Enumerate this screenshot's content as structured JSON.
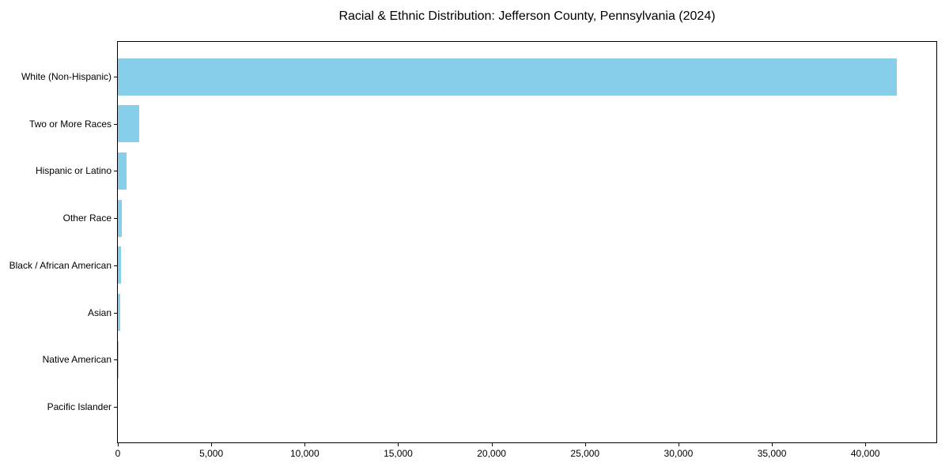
{
  "chart_data": {
    "type": "bar",
    "orientation": "horizontal",
    "title": "Racial & Ethnic Distribution: Jefferson County, Pennsylvania (2024)",
    "categories": [
      "White (Non-Hispanic)",
      "Two or More Races",
      "Hispanic or Latino",
      "Other Race",
      "Black / African American",
      "Asian",
      "Native American",
      "Pacific Islander"
    ],
    "values": [
      41700,
      1150,
      480,
      210,
      180,
      130,
      30,
      10
    ],
    "bar_color": "#87CEEB",
    "xlabel": "",
    "ylabel": "",
    "xlim": [
      0,
      43800
    ],
    "xticks": [
      0,
      5000,
      10000,
      15000,
      20000,
      25000,
      30000,
      35000,
      40000
    ],
    "xtick_labels": [
      "0",
      "5,000",
      "10,000",
      "15,000",
      "20,000",
      "25,000",
      "30,000",
      "35,000",
      "40,000"
    ],
    "grid": false,
    "legend": null,
    "background_color": "#ffffff",
    "text_color": "#000000"
  }
}
